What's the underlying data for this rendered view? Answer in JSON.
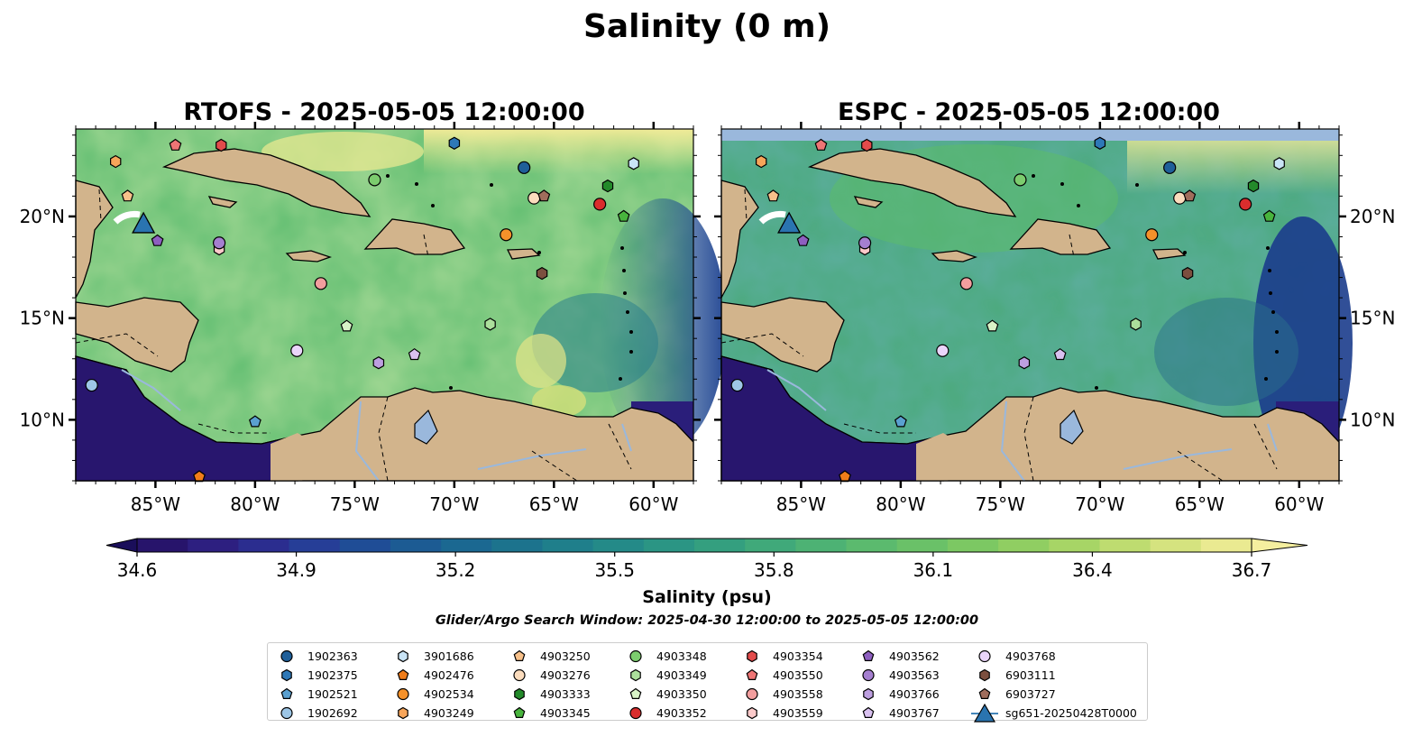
{
  "figure": {
    "suptitle": "Salinity (0 m)",
    "search_window": "Glider/Argo Search Window: 2025-04-30 12:00:00 to 2025-05-05 12:00:00"
  },
  "panels": [
    {
      "title": "RTOFS - 2025-05-05 12:00:00",
      "model": "RTOFS"
    },
    {
      "title": "ESPC - 2025-05-05 12:00:00",
      "model": "ESPC"
    }
  ],
  "axes": {
    "lon_ticks": [
      "85°W",
      "80°W",
      "75°W",
      "70°W",
      "65°W",
      "60°W"
    ],
    "lon_values": [
      -85,
      -80,
      -75,
      -70,
      -65,
      -60
    ],
    "lat_ticks": [
      "20°N",
      "15°N",
      "10°N"
    ],
    "lat_values": [
      20,
      15,
      10
    ],
    "lon_range": [
      -89,
      -58
    ],
    "lat_range": [
      7,
      24.3
    ]
  },
  "colorbar": {
    "label": "Salinity (psu)",
    "ticks": [
      "34.6",
      "34.9",
      "35.2",
      "35.5",
      "35.8",
      "36.1",
      "36.4",
      "36.7"
    ],
    "min": 34.6,
    "max": 36.7,
    "levels": 22,
    "extend": "both",
    "colors": [
      "#27146b",
      "#2d1f80",
      "#2b2d8f",
      "#263e97",
      "#1f4d96",
      "#1c5b93",
      "#1b6891",
      "#1c738d",
      "#1f7f8b",
      "#248a88",
      "#2b9584",
      "#349f7f",
      "#40a97a",
      "#4db274",
      "#5bba6e",
      "#6ac168",
      "#7cc863",
      "#90ce62",
      "#a7d566",
      "#bedc70",
      "#d5e37f",
      "#eaea91"
    ]
  },
  "colors": {
    "land": "#d2b48c",
    "lake": "#9ab8dc",
    "missing_band": "#9ab8dc",
    "glider": "#2a74b0"
  },
  "legend": {
    "items": [
      {
        "label": "1902363",
        "marker": "circle",
        "color": "#1f5f99"
      },
      {
        "label": "1902375",
        "marker": "hexagon",
        "color": "#2e78b7"
      },
      {
        "label": "1902521",
        "marker": "pentagon",
        "color": "#5aa0d0"
      },
      {
        "label": "1902692",
        "marker": "circle",
        "color": "#9dc6e6"
      },
      {
        "label": "3901686",
        "marker": "hexagon",
        "color": "#c9e4f6"
      },
      {
        "label": "4902476",
        "marker": "pentagon",
        "color": "#f07d1a"
      },
      {
        "label": "4902534",
        "marker": "circle",
        "color": "#f5912a"
      },
      {
        "label": "4903249",
        "marker": "hexagon",
        "color": "#f7a55a"
      },
      {
        "label": "4903250",
        "marker": "pentagon",
        "color": "#f8c18a"
      },
      {
        "label": "4903276",
        "marker": "circle",
        "color": "#fbdcbd"
      },
      {
        "label": "4903333",
        "marker": "hexagon",
        "color": "#238a2a"
      },
      {
        "label": "4903345",
        "marker": "pentagon",
        "color": "#48b43d"
      },
      {
        "label": "4903348",
        "marker": "circle",
        "color": "#7ccc6e"
      },
      {
        "label": "4903349",
        "marker": "hexagon",
        "color": "#acdf9c"
      },
      {
        "label": "4903350",
        "marker": "pentagon",
        "color": "#d8f3c7"
      },
      {
        "label": "4903352",
        "marker": "circle",
        "color": "#da2d2d"
      },
      {
        "label": "4903354",
        "marker": "hexagon",
        "color": "#e24b4b"
      },
      {
        "label": "4903550",
        "marker": "pentagon",
        "color": "#ee7575"
      },
      {
        "label": "4903558",
        "marker": "circle",
        "color": "#f29e9e"
      },
      {
        "label": "4903559",
        "marker": "hexagon",
        "color": "#fbcaca"
      },
      {
        "label": "4903562",
        "marker": "pentagon",
        "color": "#8e5fc0"
      },
      {
        "label": "4903563",
        "marker": "circle",
        "color": "#a57fd0"
      },
      {
        "label": "4903766",
        "marker": "hexagon",
        "color": "#bd9fe0"
      },
      {
        "label": "4903767",
        "marker": "pentagon",
        "color": "#d9c1f0"
      },
      {
        "label": "4903768",
        "marker": "circle",
        "color": "#ead5fa"
      },
      {
        "label": "6903111",
        "marker": "hexagon",
        "color": "#7c4f3f"
      },
      {
        "label": "6903727",
        "marker": "pentagon",
        "color": "#a06d5c"
      },
      {
        "label": "sg651-20250428T0000",
        "marker": "triangle",
        "color": "#2a74b0"
      }
    ]
  },
  "floats": [
    {
      "label": "1902363",
      "lon": -66.5,
      "lat": 22.4
    },
    {
      "label": "1902375",
      "lon": -70.0,
      "lat": 23.6
    },
    {
      "label": "1902521",
      "lon": -80.0,
      "lat": 9.9
    },
    {
      "label": "1902692",
      "lon": -88.2,
      "lat": 11.7
    },
    {
      "label": "3901686",
      "lon": -61.0,
      "lat": 22.6
    },
    {
      "label": "4902476",
      "lon": -82.8,
      "lat": 7.2
    },
    {
      "label": "4902534",
      "lon": -67.4,
      "lat": 19.1
    },
    {
      "label": "4903249",
      "lon": -87.0,
      "lat": 22.7
    },
    {
      "label": "4903250",
      "lon": -86.4,
      "lat": 21.0
    },
    {
      "label": "4903276",
      "lon": -66.0,
      "lat": 20.9
    },
    {
      "label": "4903333",
      "lon": -62.3,
      "lat": 21.5
    },
    {
      "label": "4903345",
      "lon": -61.5,
      "lat": 20.0
    },
    {
      "label": "4903348",
      "lon": -74.0,
      "lat": 21.8
    },
    {
      "label": "4903349",
      "lon": -68.2,
      "lat": 14.7
    },
    {
      "label": "4903350",
      "lon": -75.4,
      "lat": 14.6
    },
    {
      "label": "4903352",
      "lon": -62.7,
      "lat": 20.6
    },
    {
      "label": "4903354",
      "lon": -81.7,
      "lat": 23.5
    },
    {
      "label": "4903550",
      "lon": -84.0,
      "lat": 23.5
    },
    {
      "label": "4903558",
      "lon": -76.7,
      "lat": 16.7
    },
    {
      "label": "4903559",
      "lon": -81.8,
      "lat": 18.4
    },
    {
      "label": "4903562",
      "lon": -84.9,
      "lat": 18.8
    },
    {
      "label": "4903563",
      "lon": -81.8,
      "lat": 18.7
    },
    {
      "label": "4903766",
      "lon": -73.8,
      "lat": 12.8
    },
    {
      "label": "4903767",
      "lon": -72.0,
      "lat": 13.2
    },
    {
      "label": "4903768",
      "lon": -77.9,
      "lat": 13.4
    },
    {
      "label": "6903111",
      "lon": -65.6,
      "lat": 17.2
    },
    {
      "label": "6903727",
      "lon": -65.5,
      "lat": 21.0
    }
  ],
  "glider": {
    "label": "sg651-20250428T0000",
    "lon": -85.6,
    "lat": 19.6
  }
}
